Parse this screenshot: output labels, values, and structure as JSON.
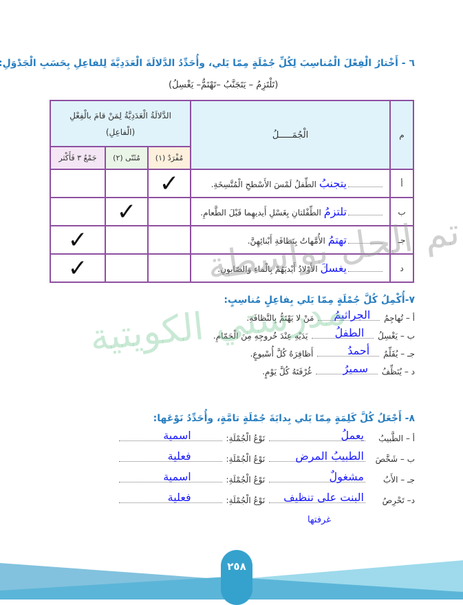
{
  "q6": {
    "title": "٦ - أَخْتارُ الْفِعْلَ الْمُناسِبَ لِكُلِّ جُمْلَةٍ مِمّا يَلي، وأُحَدِّدُ الدَّلالَةَ الْعَدَدِيَّةَ لِلفاعِلِ بِحَسَبِ الْجَدْوَلِ:",
    "verbs": "(تَلْتَزِمُ – يَتَجَنَّبُ –تَهْتَمُّ– يَغْسِلُ)",
    "table": {
      "col_index": "م",
      "col_sentences": "الْجُمَـــــلُ",
      "col_group": "الدَّلالَةُ الْعَدَدِيَّةُ لِمَنْ قامَ بالْفِعْلِ (الْفاعِلِ)",
      "col_singular": "مُفْرَدٌ (١)",
      "col_dual": "مُثَنّى (٢)",
      "col_plural": "جَمْعٌ ٣ فَأَكْثر",
      "rows": [
        {
          "index": "أ",
          "answer": "يتجنبُ",
          "sentence": "الطِّفلُ لَمْسَ الأَسْطحِ الْمُتَّسِخَةِ.",
          "check": "singular"
        },
        {
          "index": "ب",
          "answer": "تلتزمُ",
          "sentence": "الطِّفْلتانِ بِغَسْلِ أَيديهِما قَبْلَ الطَّعامِ.",
          "check": "dual"
        },
        {
          "index": "جـ",
          "answer": "تهتمُ",
          "sentence": "الأُمَّهاتُ بِنَظافَةِ أَبْنائِهِنَّ.",
          "check": "plural"
        },
        {
          "index": "د",
          "answer": "يغسلَ",
          "sentence": "الأَوْلادُ أَيْديَهُمْ بِالْماءِ وَالصّابونِ.",
          "check": "plural"
        }
      ],
      "check_mark": "✓"
    }
  },
  "q7": {
    "title": "٧-أُكْمِلُ كُلَّ جُمْلَةٍ مِمّا يَلي بِفاعِلٍ مُناسِبٍ:",
    "items": [
      {
        "label": "أ – تُهاجِمُ",
        "answer": "الجراثيمُ",
        "rest": "مَنْ لا يَهْتَمُّ بِالنَّظافَةِ."
      },
      {
        "label": "ب – يَغْسِلُ",
        "answer": "الطفلُ",
        "rest": "يَدَيْهِ عِنْدَ خُروجِهِ مِنَ الْحَمّامِ."
      },
      {
        "label": "جـ – يُقَلِّمُ",
        "answer": "أحمدُ",
        "rest": "أَظافِرَهُ كُلَّ أُسْبوعٍ."
      },
      {
        "label": "د – يُنَظِّفُ",
        "answer": "سميرُ",
        "rest": "غُرْفَتَهُ كُلَّ يَوْمٍ."
      }
    ]
  },
  "q8": {
    "title": "٨- أَجْعَلُ كُلَّ كَلِمَةٍ مِمّا يَلي بِدايَةَ جُمْلَةٍ تامَّةٍ، وأُحَدِّدُ نَوْعَها:",
    "type_label": "نَوْعُ الْجُمْلَةِ:",
    "items": [
      {
        "label": "أ – الطَّبيبُ",
        "answer": "يعملُ",
        "type": "اسمية"
      },
      {
        "label": "ب – شَخَّصَ",
        "answer": "الطبيبُ المرض",
        "type": "فعلية"
      },
      {
        "label": "جـ – الأَبُ",
        "answer": "مشغولٌ",
        "type": "اسمية"
      },
      {
        "label": "د– تَحْرِصُ",
        "answer": "البنت على تنظيف",
        "answer_line2": "غرفتها",
        "type": "فعلية"
      }
    ]
  },
  "watermark": {
    "line1": "تم الحل بواسطة",
    "line2": "مدرستي الكويتية"
  },
  "footer": {
    "page_number": "٢٥٨"
  },
  "colors": {
    "heading": "#2a7fc0",
    "answer": "#1a1aff",
    "table_border": "#8e4fa0",
    "footer_band": "#5bb5d8",
    "page_badge": "#35a2cd"
  }
}
